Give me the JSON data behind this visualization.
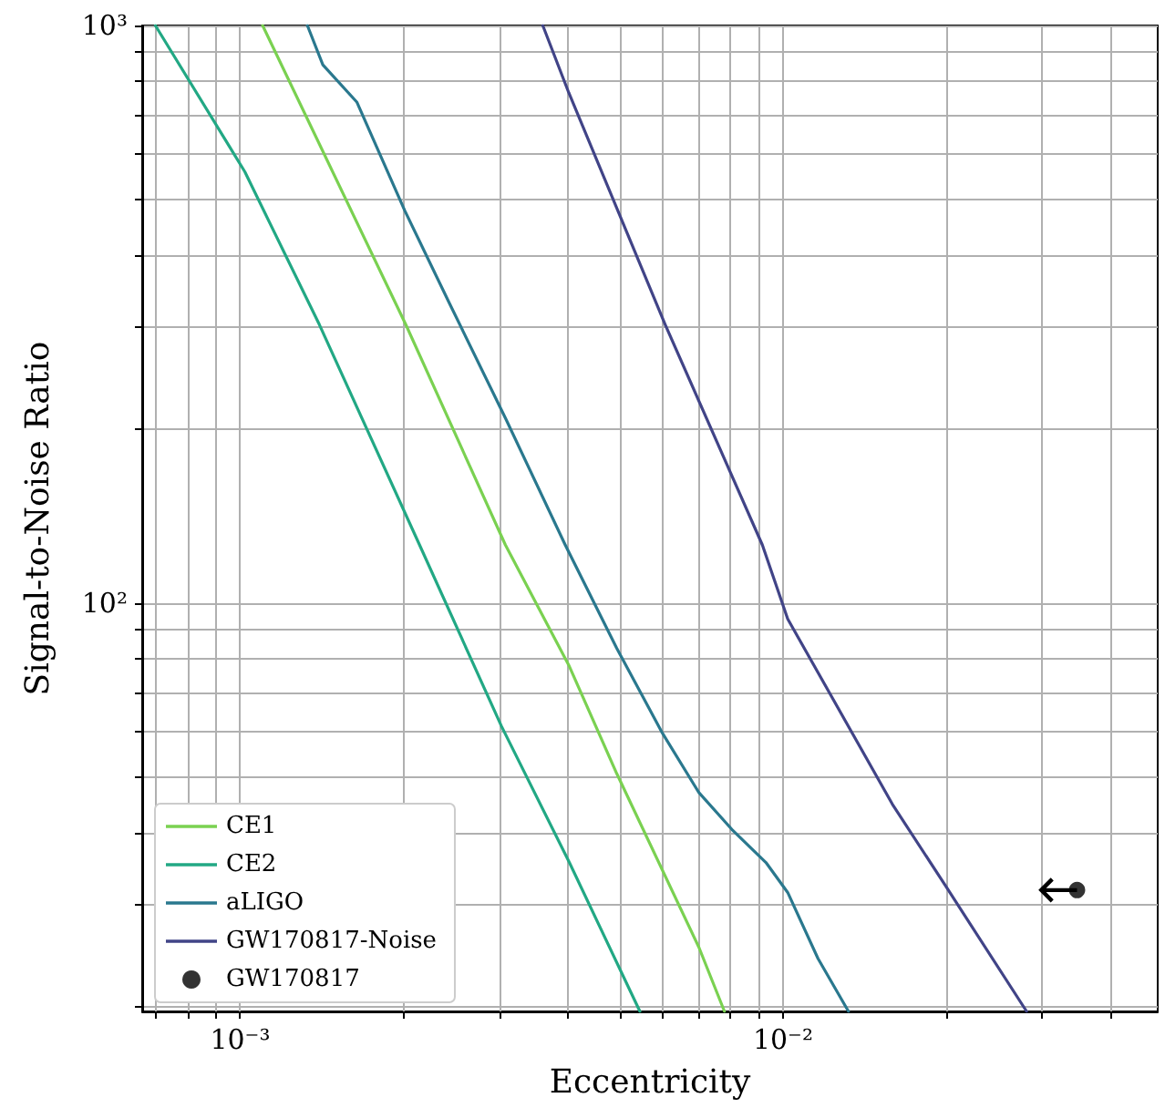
{
  "chart_data": {
    "type": "line",
    "xlabel": "Eccentricity",
    "ylabel": "Signal-to-Noise Ratio",
    "log": "xy",
    "grid": true,
    "legend": "bottom left",
    "xlim": [
      0.00066,
      0.049
    ],
    "ylim": [
      19.6,
      1000
    ],
    "xticks": [
      {
        "value": 0.0007,
        "label": null
      },
      {
        "value": 0.0008,
        "label": null
      },
      {
        "value": 0.0009,
        "label": null
      },
      {
        "value": 0.001,
        "label": "10⁻³"
      },
      {
        "value": 0.002,
        "label": null
      },
      {
        "value": 0.003,
        "label": null
      },
      {
        "value": 0.004,
        "label": null
      },
      {
        "value": 0.005,
        "label": null
      },
      {
        "value": 0.006,
        "label": null
      },
      {
        "value": 0.007,
        "label": null
      },
      {
        "value": 0.008,
        "label": null
      },
      {
        "value": 0.009,
        "label": null
      },
      {
        "value": 0.01,
        "label": "10⁻²"
      },
      {
        "value": 0.02,
        "label": null
      },
      {
        "value": 0.03,
        "label": null
      },
      {
        "value": 0.04,
        "label": null
      }
    ],
    "yticks": [
      {
        "value": 20,
        "label": null
      },
      {
        "value": 30,
        "label": null
      },
      {
        "value": 40,
        "label": null
      },
      {
        "value": 50,
        "label": null
      },
      {
        "value": 60,
        "label": null
      },
      {
        "value": 70,
        "label": null
      },
      {
        "value": 80,
        "label": null
      },
      {
        "value": 90,
        "label": null
      },
      {
        "value": 100,
        "label": "10²"
      },
      {
        "value": 200,
        "label": null
      },
      {
        "value": 300,
        "label": null
      },
      {
        "value": 400,
        "label": null
      },
      {
        "value": 500,
        "label": null
      },
      {
        "value": 600,
        "label": null
      },
      {
        "value": 700,
        "label": null
      },
      {
        "value": 800,
        "label": null
      },
      {
        "value": 900,
        "label": null
      },
      {
        "value": 1000,
        "label": "10³"
      }
    ],
    "series": [
      {
        "name": "CE1",
        "color": "#7ad151",
        "x": [
          0.0011,
          0.00202,
          0.00308,
          0.00404,
          0.00494,
          0.007,
          0.0078
        ],
        "values": [
          1000,
          303,
          126,
          77.6,
          50.6,
          25.3,
          19.6
        ]
      },
      {
        "name": "CE2",
        "color": "#22a884",
        "x": [
          0.000698,
          0.00102,
          0.0014,
          0.00214,
          0.00303,
          0.00404,
          0.00545
        ],
        "values": [
          1000,
          558,
          303,
          126,
          61.1,
          35.5,
          19.6
        ]
      },
      {
        "name": "aLIGO",
        "color": "#2a788e",
        "x": [
          0.00133,
          0.00142,
          0.00164,
          0.00201,
          0.00243,
          0.00308,
          0.00397,
          0.00494,
          0.006,
          0.007,
          0.00805,
          0.0093,
          0.0102,
          0.0116,
          0.0132
        ],
        "values": [
          1000,
          855,
          737,
          478,
          330,
          209,
          126,
          83.4,
          59.4,
          46.9,
          40.5,
          35.5,
          31.5,
          24.2,
          19.6
        ]
      },
      {
        "name": "GW170817-Noise",
        "color": "#414487",
        "x": [
          0.00361,
          0.00403,
          0.00607,
          0.00916,
          0.0102,
          0.0159,
          0.0199,
          0.0281
        ],
        "values": [
          1000,
          765,
          303,
          126,
          93.8,
          44.8,
          32.4,
          19.6
        ]
      },
      {
        "name": "GW170817",
        "type": "scatter",
        "color": "#000000",
        "x": [
          0.0348
        ],
        "values": [
          31.8
        ],
        "xerrors": [
          [
            0.0299,
            0.0348
          ]
        ]
      }
    ]
  }
}
